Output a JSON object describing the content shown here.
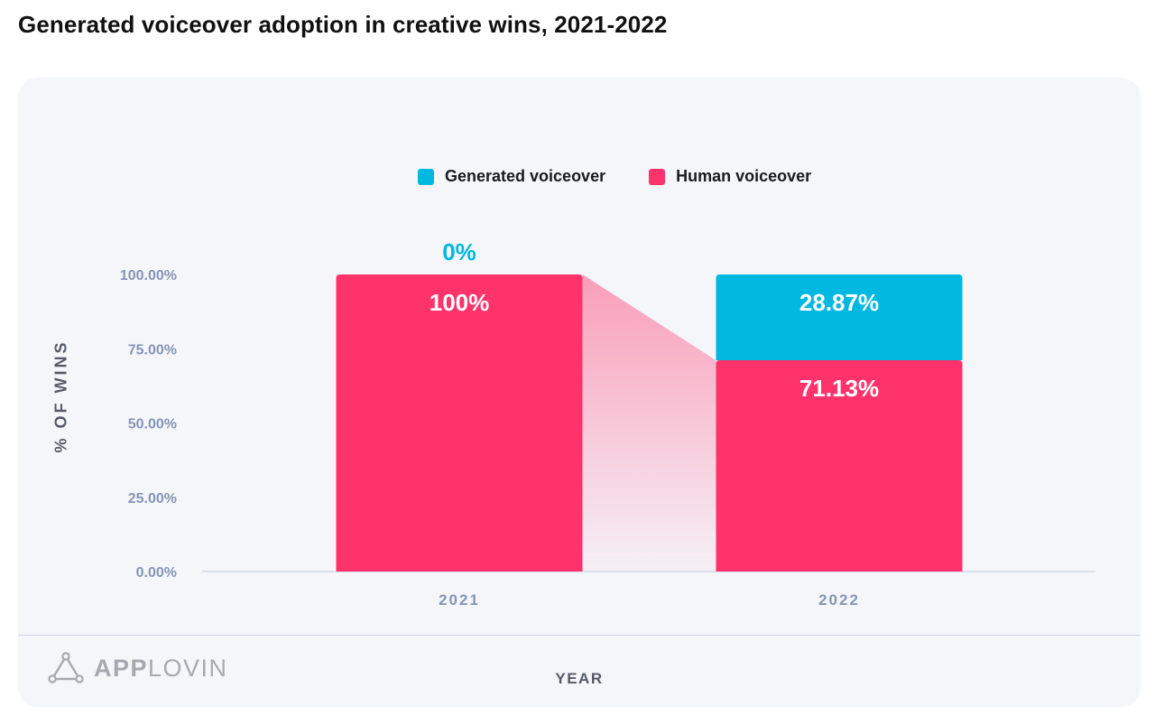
{
  "page": {
    "title": "Generated voiceover adoption in creative wins, 2021-2022"
  },
  "brand": {
    "name_part1": "APP",
    "name_part2": "LOVIN",
    "color": "#a7a9b0"
  },
  "colors": {
    "generated": "#00b8e0",
    "human": "#ff336b",
    "axis_text": "#8595b5",
    "card_background": "#f5f6fa"
  },
  "chart_data": {
    "type": "bar",
    "stacked": true,
    "title": "Generated voiceover adoption in creative wins, 2021-2022",
    "xlabel": "YEAR",
    "ylabel": "% OF WINS",
    "categories": [
      "2021",
      "2022"
    ],
    "y_ticks": [
      "0.00%",
      "25.00%",
      "50.00%",
      "75.00%",
      "100.00%"
    ],
    "ylim": [
      0,
      100
    ],
    "legend_position": "top-center",
    "grid": false,
    "series": [
      {
        "name": "Human voiceover",
        "color": "#ff336b",
        "values": [
          100,
          71.13
        ],
        "labels": [
          "100%",
          "71.13%"
        ]
      },
      {
        "name": "Generated voiceover",
        "color": "#00b8e0",
        "values": [
          0,
          28.87
        ],
        "labels": [
          "0%",
          "28.87%"
        ]
      }
    ]
  }
}
